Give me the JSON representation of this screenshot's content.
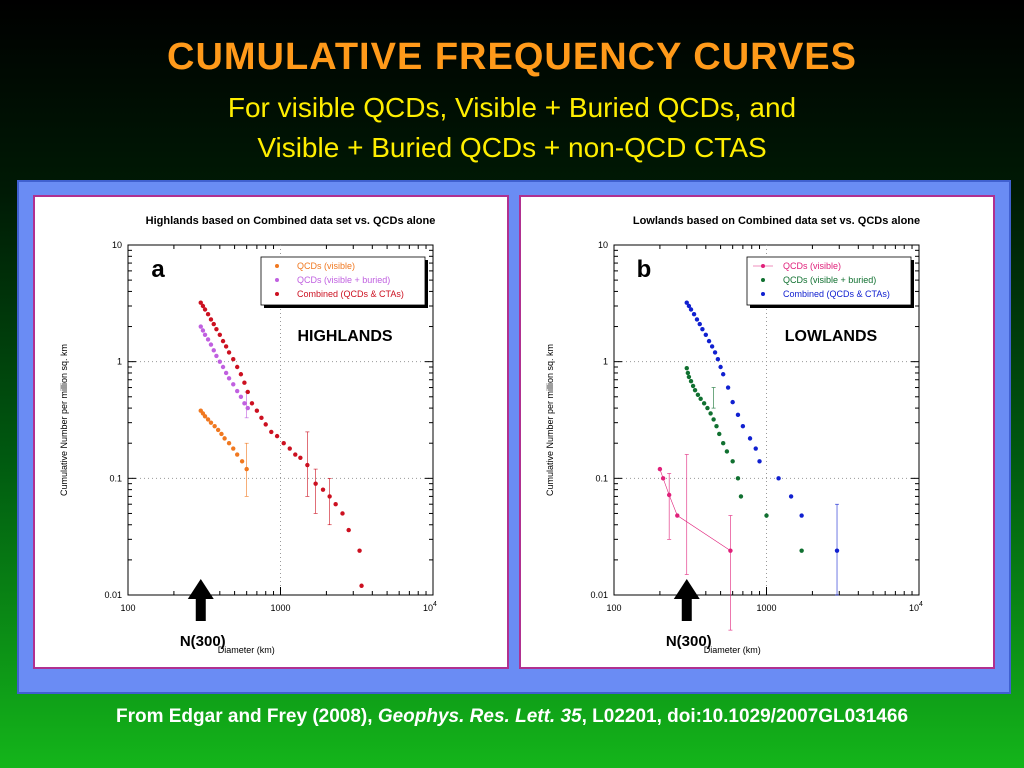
{
  "slide": {
    "title": "CUMULATIVE  FREQUENCY  CURVES",
    "subtitle_line1": "For visible QCDs, Visible + Buried QCDs, and",
    "subtitle_line2": "Visible + Buried QCDs + non-QCD CTAS",
    "citation_prefix": "From Edgar and Frey (2008), ",
    "citation_journal": "Geophys. Res. Lett. 35",
    "citation_suffix": ", L02201, doi:10.1029/2007GL031466",
    "colors": {
      "title": "#ff9a1a",
      "subtitle": "#ffee00",
      "panel": "#6a8cf4",
      "frame_border": "#b03090"
    }
  },
  "chart_data": [
    {
      "type": "scatter",
      "panel_letter": "a",
      "title": "Highlands based on Combined data set vs. QCDs alone",
      "region_label": "HIGHLANDS",
      "xlabel": "Diameter (km)",
      "ylabel": "Cumulative Number per million sq. km",
      "x_scale": "log",
      "y_scale": "log",
      "xlim": [
        100,
        10000
      ],
      "ylim": [
        0.01,
        10
      ],
      "x_ticks": [
        "100",
        "1000",
        "10^4"
      ],
      "y_ticks": [
        "10",
        "1",
        "0.1",
        "0.01"
      ],
      "legend_position": "top-right",
      "annotation": "N(300)",
      "annotation_x": 300,
      "series": [
        {
          "name": "QCDs (visible)",
          "color": "#f07820",
          "x": [
            300,
            310,
            320,
            335,
            350,
            370,
            390,
            410,
            430,
            460,
            490,
            520,
            560,
            600
          ],
          "y": [
            0.38,
            0.36,
            0.34,
            0.32,
            0.3,
            0.28,
            0.26,
            0.24,
            0.22,
            0.2,
            0.18,
            0.16,
            0.14,
            0.12
          ],
          "errorbars": [
            {
              "x": 600,
              "lo": 0.07,
              "hi": 0.2
            }
          ]
        },
        {
          "name": "QCDs (visible + buried)",
          "color": "#c060e0",
          "x": [
            300,
            310,
            320,
            335,
            350,
            365,
            380,
            400,
            420,
            440,
            460,
            490,
            520,
            550,
            580,
            610
          ],
          "y": [
            2.0,
            1.85,
            1.7,
            1.55,
            1.4,
            1.25,
            1.12,
            1.0,
            0.9,
            0.8,
            0.72,
            0.64,
            0.56,
            0.5,
            0.44,
            0.4
          ],
          "errorbars": [
            {
              "x": 600,
              "lo": 0.33,
              "hi": 0.55
            }
          ]
        },
        {
          "name": "Combined (QCDs & CTAs)",
          "color": "#cc1020",
          "x": [
            300,
            310,
            320,
            335,
            350,
            365,
            380,
            400,
            420,
            440,
            460,
            490,
            520,
            550,
            580,
            610,
            650,
            700,
            750,
            800,
            870,
            950,
            1050,
            1150,
            1250,
            1350,
            1500,
            1700,
            1900,
            2100,
            2300,
            2550,
            2800,
            3300,
            3400
          ],
          "y": [
            3.2,
            3.0,
            2.8,
            2.55,
            2.3,
            2.1,
            1.9,
            1.7,
            1.5,
            1.35,
            1.2,
            1.05,
            0.9,
            0.78,
            0.66,
            0.55,
            0.44,
            0.38,
            0.33,
            0.29,
            0.25,
            0.23,
            0.2,
            0.18,
            0.16,
            0.15,
            0.13,
            0.09,
            0.08,
            0.07,
            0.06,
            0.05,
            0.036,
            0.024,
            0.012
          ],
          "errorbars": [
            {
              "x": 1500,
              "lo": 0.07,
              "hi": 0.25
            },
            {
              "x": 1700,
              "lo": 0.05,
              "hi": 0.12
            },
            {
              "x": 2100,
              "lo": 0.04,
              "hi": 0.1
            }
          ]
        }
      ]
    },
    {
      "type": "scatter",
      "panel_letter": "b",
      "title": "Lowlands based on Combined data set vs. QCDs alone",
      "region_label": "LOWLANDS",
      "xlabel": "Diameter (km)",
      "ylabel": "Cumulative Number per million sq. km",
      "x_scale": "log",
      "y_scale": "log",
      "xlim": [
        100,
        10000
      ],
      "ylim": [
        0.01,
        10
      ],
      "x_ticks": [
        "100",
        "1000",
        "10^4"
      ],
      "y_ticks": [
        "10",
        "1",
        "0.1",
        "0.01"
      ],
      "legend_position": "top-right",
      "annotation": "N(300)",
      "annotation_x": 300,
      "series": [
        {
          "name": "QCDs (visible)",
          "color": "#e0207a",
          "connected": true,
          "x": [
            200,
            210,
            230,
            260,
            580
          ],
          "y": [
            0.12,
            0.1,
            0.072,
            0.048,
            0.024
          ],
          "errorbars": [
            {
              "x": 230,
              "lo": 0.03,
              "hi": 0.11
            },
            {
              "x": 300,
              "lo": 0.015,
              "hi": 0.16
            },
            {
              "x": 580,
              "lo": 0.005,
              "hi": 0.048
            }
          ]
        },
        {
          "name": "QCDs (visible + buried)",
          "color": "#107030",
          "x": [
            300,
            305,
            310,
            320,
            330,
            340,
            355,
            370,
            390,
            410,
            430,
            450,
            470,
            490,
            520,
            550,
            600,
            650,
            680,
            1000,
            1700
          ],
          "y": [
            0.88,
            0.8,
            0.74,
            0.68,
            0.62,
            0.57,
            0.52,
            0.48,
            0.44,
            0.4,
            0.36,
            0.32,
            0.28,
            0.24,
            0.2,
            0.17,
            0.14,
            0.1,
            0.07,
            0.048,
            0.024
          ],
          "errorbars": [
            {
              "x": 450,
              "lo": 0.4,
              "hi": 0.6
            }
          ]
        },
        {
          "name": "Combined (QCDs & CTAs)",
          "color": "#1020d0",
          "x": [
            300,
            310,
            320,
            335,
            350,
            365,
            380,
            400,
            420,
            440,
            460,
            480,
            500,
            520,
            560,
            600,
            650,
            700,
            780,
            850,
            900,
            1200,
            1450,
            1700,
            2900
          ],
          "y": [
            3.2,
            3.0,
            2.8,
            2.55,
            2.3,
            2.1,
            1.9,
            1.7,
            1.5,
            1.35,
            1.2,
            1.05,
            0.9,
            0.78,
            0.6,
            0.45,
            0.35,
            0.28,
            0.22,
            0.18,
            0.14,
            0.1,
            0.07,
            0.048,
            0.024
          ],
          "errorbars": [
            {
              "x": 2900,
              "lo": 0.01,
              "hi": 0.06
            }
          ]
        }
      ]
    }
  ]
}
